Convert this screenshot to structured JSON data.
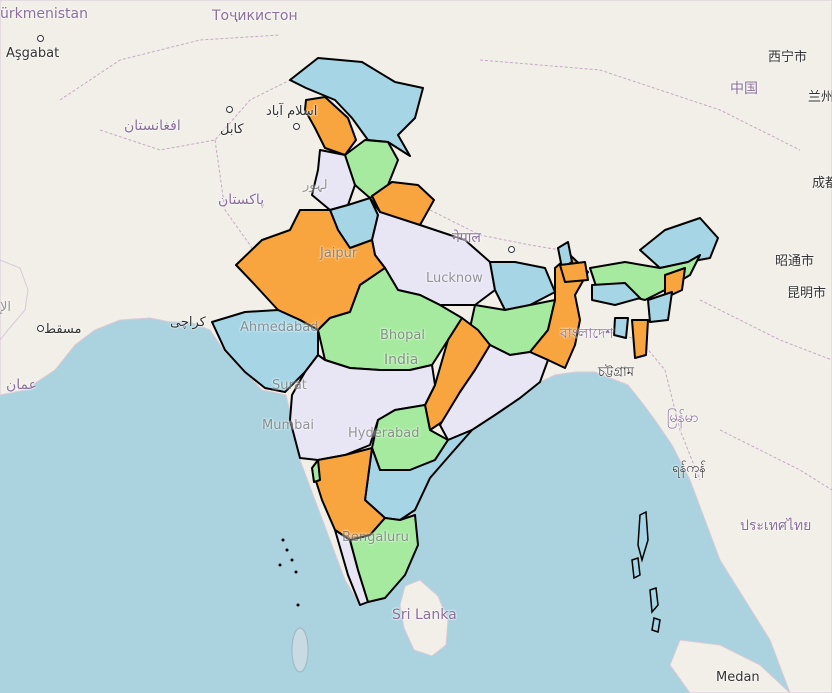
{
  "colors": {
    "sea": "#aad3df",
    "land": "#f2efe9",
    "border": "#000000",
    "state_blue": "#a6d6e6",
    "state_orange": "#f8a53f",
    "state_green": "#a6eaa0",
    "state_lavender": "#e8e6f4"
  },
  "labels": {
    "turkmenistan": "ürkmenistan",
    "tajikistan": "Тоҷикистон",
    "ashgabat": "Aşgabat",
    "xining": "西宁市",
    "china": "中国",
    "lanzhou": "兰州",
    "chengdu": "成都",
    "zhaotong": "昭通市",
    "kunming": "昆明市",
    "islamabad": "اسلام آباد",
    "afghanistan": "افغانستان",
    "kabul": "کابل",
    "pakistan": "پاکستان",
    "lahore": "لہور",
    "nepal": "नेपाल",
    "jaipur": "Jaipur",
    "lucknow": "Lucknow",
    "muscat": "مسقط",
    "oman": "عمان",
    "karachi": "کراچی",
    "ahmedabad": "Ahmedabad",
    "bhopal": "Bhopal",
    "india": "India",
    "surat": "Surat",
    "bangladesh": "বাংলাদেশ",
    "chattogram": "চট্টগ্রাম",
    "myanmar": "မြန်မာ",
    "yangon": "ရန်ကုန်",
    "mumbai": "Mumbai",
    "hyderabad": "Hyderabad",
    "bengaluru": "Bengaluru",
    "thailand": "ประเทศไทย",
    "sri_lanka": "Sri Lanka",
    "medan": "Medan",
    "ae_edge": "الإ"
  },
  "states": [
    {
      "name": "jammu-kashmir",
      "color": "state_blue"
    },
    {
      "name": "himachal-pradesh",
      "color": "state_orange"
    },
    {
      "name": "punjab",
      "color": "state_lavender"
    },
    {
      "name": "uttarakhand",
      "color": "state_green"
    },
    {
      "name": "haryana",
      "color": "state_blue"
    },
    {
      "name": "uttar-pradesh",
      "color": "state_lavender"
    },
    {
      "name": "rajasthan",
      "color": "state_orange"
    },
    {
      "name": "gujarat",
      "color": "state_blue"
    },
    {
      "name": "madhya-pradesh",
      "color": "state_green"
    },
    {
      "name": "bihar",
      "color": "state_blue"
    },
    {
      "name": "jharkhand",
      "color": "state_green"
    },
    {
      "name": "west-bengal",
      "color": "state_orange"
    },
    {
      "name": "chhattisgarh",
      "color": "state_orange"
    },
    {
      "name": "odisha",
      "color": "state_lavender"
    },
    {
      "name": "maharashtra",
      "color": "state_lavender"
    },
    {
      "name": "telangana",
      "color": "state_green"
    },
    {
      "name": "andhra-pradesh",
      "color": "state_blue"
    },
    {
      "name": "karnataka",
      "color": "state_orange"
    },
    {
      "name": "goa",
      "color": "state_green"
    },
    {
      "name": "kerala",
      "color": "state_lavender"
    },
    {
      "name": "tamil-nadu",
      "color": "state_green"
    },
    {
      "name": "sikkim",
      "color": "state_blue"
    },
    {
      "name": "arunachal-pradesh",
      "color": "state_blue"
    },
    {
      "name": "assam",
      "color": "state_green"
    },
    {
      "name": "meghalaya",
      "color": "state_blue"
    },
    {
      "name": "nagaland",
      "color": "state_orange"
    },
    {
      "name": "manipur",
      "color": "state_blue"
    },
    {
      "name": "mizoram",
      "color": "state_orange"
    },
    {
      "name": "tripura",
      "color": "state_blue"
    },
    {
      "name": "andaman-nicobar",
      "color": "state_blue"
    }
  ]
}
